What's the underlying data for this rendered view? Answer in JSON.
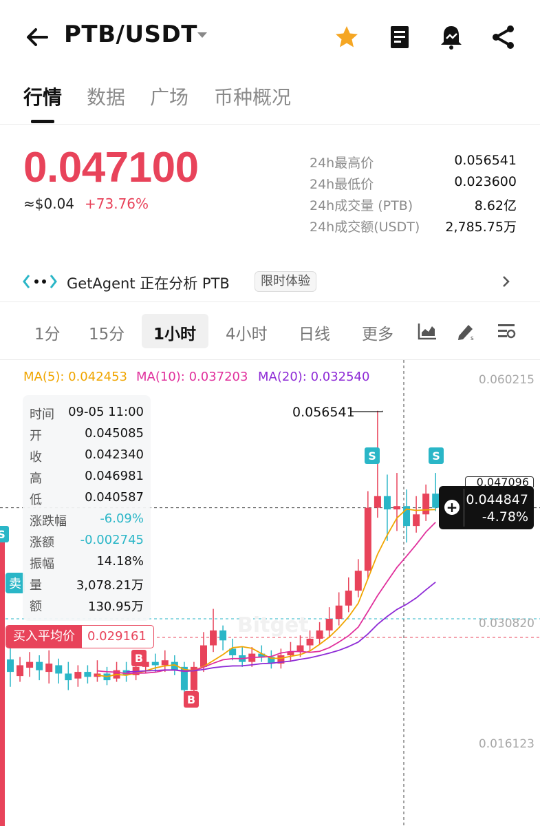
{
  "header": {
    "pair": "PTB/USDT",
    "icons": [
      "back-arrow-icon",
      "caret-down-icon",
      "star-icon",
      "notebook-icon",
      "price-alert-bell-icon",
      "share-icon"
    ],
    "star_color": "#f5a623"
  },
  "tabs": [
    {
      "label": "行情",
      "active": true
    },
    {
      "label": "数据",
      "active": false
    },
    {
      "label": "广场",
      "active": false
    },
    {
      "label": "币种概况",
      "active": false
    }
  ],
  "price": {
    "last": "0.047100",
    "usd_approx": "≈$0.04",
    "change": "+73.76%",
    "color": "#e8435a"
  },
  "stats": [
    {
      "label": "24h最高价",
      "value": "0.056541"
    },
    {
      "label": "24h最低价",
      "value": "0.023600"
    },
    {
      "label": "24h成交量 (PTB)",
      "value": "8.62亿"
    },
    {
      "label": "24h成交额(USDT)",
      "value": "2,785.75万"
    }
  ],
  "agent": {
    "text": "GetAgent 正在分析 PTB",
    "badge": "限时体验"
  },
  "timeframes": [
    "1分",
    "15分",
    "1小时",
    "4小时",
    "日线",
    "更多"
  ],
  "timeframe_active": "1小时",
  "chart_tools": [
    "chart-type-icon",
    "draw-tool-icon",
    "indicator-settings-icon"
  ],
  "ma": {
    "ma5": "MA(5): 0.042453",
    "ma10": "MA(10): 0.037203",
    "ma20": "MA(20): 0.032540",
    "colors": {
      "ma5": "#f0a500",
      "ma10": "#e0309c",
      "ma20": "#8e2bd6"
    }
  },
  "y_axis": [
    "0.060215",
    "0.030820",
    "0.016123"
  ],
  "peak_label": "0.056541",
  "tooltip": [
    {
      "k": "时间",
      "v": "09-05 11:00"
    },
    {
      "k": "开",
      "v": "0.045085"
    },
    {
      "k": "收",
      "v": "0.042340"
    },
    {
      "k": "高",
      "v": "0.046981"
    },
    {
      "k": "低",
      "v": "0.040587"
    },
    {
      "k": "涨跌幅",
      "v": "-6.09%"
    },
    {
      "k": "涨额",
      "v": "-0.002745"
    },
    {
      "k": "振幅",
      "v": "14.18%"
    },
    {
      "k": "量",
      "v": "3,078.21万"
    },
    {
      "k": "额",
      "v": "130.95万"
    }
  ],
  "avg_buy": {
    "label": "买入平均价",
    "value": "0.029161"
  },
  "live_price": {
    "price": "0.044847",
    "change": "-4.78%",
    "behind": "0.047096"
  },
  "markers": {
    "sell": "S",
    "buy": "B",
    "sell_tag": "卖"
  },
  "colors": {
    "up": "#e8435a",
    "down": "#2ab6c7"
  },
  "chart_data": {
    "type": "candlestick",
    "interval": "1小时",
    "y_ticks": [
      0.060215,
      0.03082,
      0.016123
    ],
    "candles": [
      {
        "o": 0.0265,
        "c": 0.025,
        "h": 0.0285,
        "l": 0.0232
      },
      {
        "o": 0.0245,
        "c": 0.0258,
        "h": 0.0268,
        "l": 0.0238
      },
      {
        "o": 0.0255,
        "c": 0.0262,
        "h": 0.0274,
        "l": 0.0244
      },
      {
        "o": 0.0262,
        "c": 0.0252,
        "h": 0.027,
        "l": 0.024
      },
      {
        "o": 0.025,
        "c": 0.026,
        "h": 0.0276,
        "l": 0.0236
      },
      {
        "o": 0.0258,
        "c": 0.0248,
        "h": 0.0266,
        "l": 0.0236
      },
      {
        "o": 0.0248,
        "c": 0.024,
        "h": 0.0262,
        "l": 0.0228
      },
      {
        "o": 0.0242,
        "c": 0.025,
        "h": 0.0258,
        "l": 0.0232
      },
      {
        "o": 0.025,
        "c": 0.0244,
        "h": 0.0258,
        "l": 0.0236
      },
      {
        "o": 0.0244,
        "c": 0.0248,
        "h": 0.0264,
        "l": 0.0238
      },
      {
        "o": 0.0248,
        "c": 0.024,
        "h": 0.0256,
        "l": 0.0234
      },
      {
        "o": 0.0242,
        "c": 0.0252,
        "h": 0.0262,
        "l": 0.0238
      },
      {
        "o": 0.0252,
        "c": 0.0246,
        "h": 0.0262,
        "l": 0.0238
      },
      {
        "o": 0.0246,
        "c": 0.0256,
        "h": 0.0268,
        "l": 0.024
      },
      {
        "o": 0.0256,
        "c": 0.0262,
        "h": 0.027,
        "l": 0.0248
      },
      {
        "o": 0.0262,
        "c": 0.0258,
        "h": 0.0272,
        "l": 0.025
      },
      {
        "o": 0.0258,
        "c": 0.0264,
        "h": 0.0276,
        "l": 0.025
      },
      {
        "o": 0.0262,
        "c": 0.0252,
        "h": 0.027,
        "l": 0.0246
      },
      {
        "o": 0.0256,
        "c": 0.0228,
        "h": 0.0262,
        "l": 0.0212
      },
      {
        "o": 0.0228,
        "c": 0.0256,
        "h": 0.0262,
        "l": 0.022
      },
      {
        "o": 0.0256,
        "c": 0.0282,
        "h": 0.0298,
        "l": 0.025
      },
      {
        "o": 0.0282,
        "c": 0.03,
        "h": 0.0326,
        "l": 0.0274
      },
      {
        "o": 0.03,
        "c": 0.0288,
        "h": 0.0306,
        "l": 0.0276
      },
      {
        "o": 0.0278,
        "c": 0.027,
        "h": 0.029,
        "l": 0.0264
      },
      {
        "o": 0.027,
        "c": 0.0262,
        "h": 0.028,
        "l": 0.0256
      },
      {
        "o": 0.0262,
        "c": 0.0272,
        "h": 0.028,
        "l": 0.0256
      },
      {
        "o": 0.0272,
        "c": 0.0268,
        "h": 0.0282,
        "l": 0.0262
      },
      {
        "o": 0.0268,
        "c": 0.026,
        "h": 0.0276,
        "l": 0.0254
      },
      {
        "o": 0.026,
        "c": 0.027,
        "h": 0.0278,
        "l": 0.0254
      },
      {
        "o": 0.027,
        "c": 0.0274,
        "h": 0.0286,
        "l": 0.0262
      },
      {
        "o": 0.0274,
        "c": 0.0282,
        "h": 0.0294,
        "l": 0.0268
      },
      {
        "o": 0.0282,
        "c": 0.029,
        "h": 0.03,
        "l": 0.0276
      },
      {
        "o": 0.029,
        "c": 0.03,
        "h": 0.031,
        "l": 0.0284
      },
      {
        "o": 0.03,
        "c": 0.0314,
        "h": 0.0328,
        "l": 0.0292
      },
      {
        "o": 0.0314,
        "c": 0.033,
        "h": 0.0346,
        "l": 0.0306
      },
      {
        "o": 0.033,
        "c": 0.0348,
        "h": 0.0364,
        "l": 0.0322
      },
      {
        "o": 0.0348,
        "c": 0.0372,
        "h": 0.0386,
        "l": 0.034
      },
      {
        "o": 0.0372,
        "c": 0.0448,
        "h": 0.0468,
        "l": 0.0362
      },
      {
        "o": 0.0448,
        "c": 0.0462,
        "h": 0.0565,
        "l": 0.0436
      },
      {
        "o": 0.0462,
        "c": 0.0446,
        "h": 0.0488,
        "l": 0.0408
      },
      {
        "o": 0.0446,
        "c": 0.045,
        "h": 0.049,
        "l": 0.042
      },
      {
        "o": 0.045,
        "c": 0.0426,
        "h": 0.047,
        "l": 0.0406
      },
      {
        "o": 0.0426,
        "c": 0.044,
        "h": 0.0462,
        "l": 0.0418
      },
      {
        "o": 0.044,
        "c": 0.0465,
        "h": 0.0476,
        "l": 0.0432
      },
      {
        "o": 0.0465,
        "c": 0.0448,
        "h": 0.049,
        "l": 0.0444
      }
    ]
  }
}
